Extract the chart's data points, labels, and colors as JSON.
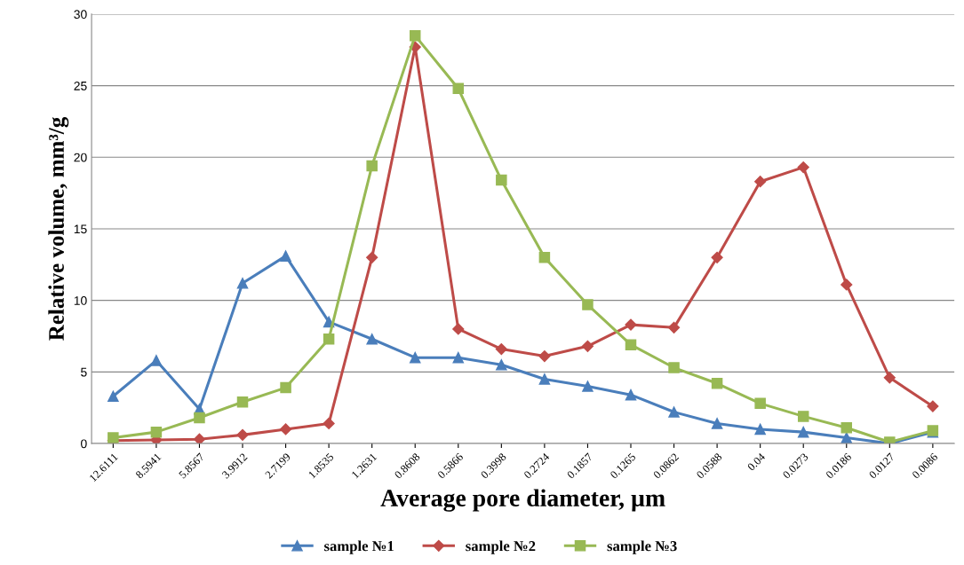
{
  "chart_data": {
    "type": "line",
    "xlabel": "Average pore diameter, µm",
    "ylabel": "Relative volume, mm³/g",
    "categories": [
      "12.6111",
      "8.5941",
      "5.8567",
      "3.9912",
      "2.7199",
      "1.8535",
      "1.2631",
      "0.8608",
      "0.5866",
      "0.3998",
      "0.2724",
      "0.1857",
      "0.1265",
      "0.0862",
      "0.0588",
      "0.04",
      "0.0273",
      "0.0186",
      "0.0127",
      "0.0086"
    ],
    "series": [
      {
        "name": "sample №1",
        "color": "#4a7ebb",
        "marker": "triangle",
        "values": [
          3.3,
          5.8,
          2.4,
          11.2,
          13.1,
          8.5,
          7.3,
          6.0,
          6.0,
          5.5,
          4.5,
          4.0,
          3.4,
          2.2,
          1.4,
          1.0,
          0.8,
          0.4,
          0.0,
          0.8
        ]
      },
      {
        "name": "sample №2",
        "color": "#be4b48",
        "marker": "diamond",
        "values": [
          0.2,
          0.25,
          0.3,
          0.6,
          1.0,
          1.4,
          13.0,
          27.7,
          8.0,
          6.6,
          6.1,
          6.8,
          8.3,
          8.1,
          13.0,
          18.3,
          19.3,
          11.1,
          4.6,
          2.6
        ]
      },
      {
        "name": "sample №3",
        "color": "#98b954",
        "marker": "square",
        "values": [
          0.4,
          0.8,
          1.8,
          2.9,
          3.9,
          7.3,
          19.4,
          28.5,
          24.8,
          18.4,
          13.0,
          9.7,
          6.9,
          5.3,
          4.2,
          2.8,
          1.9,
          1.1,
          0.1,
          0.9
        ]
      }
    ],
    "ylim": [
      0,
      30
    ],
    "yticks": [
      0,
      5,
      10,
      15,
      20,
      25,
      30
    ],
    "grid": "y",
    "legend": "bottom",
    "line_style": "solid"
  }
}
